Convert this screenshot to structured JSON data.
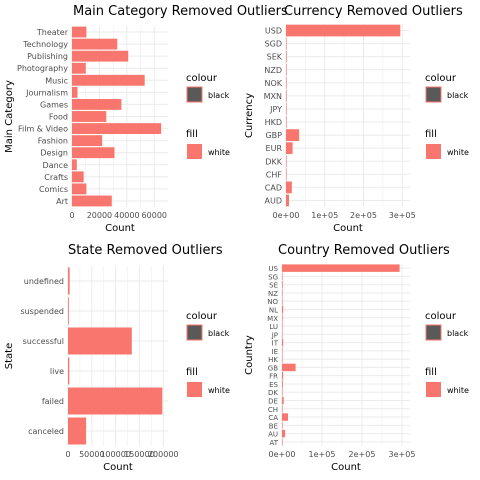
{
  "colors": {
    "bar": "#F8766D",
    "grid": "#EBEBEB",
    "legend_black": "#595959",
    "legend_border": "#F8766D"
  },
  "legend": {
    "colour_title": "colour",
    "colour_label": "black",
    "fill_title": "fill",
    "fill_label": "white"
  },
  "chart_data": [
    {
      "id": "main_category",
      "type": "bar",
      "orientation": "horizontal",
      "title": "Main Category Removed Outliers",
      "xlabel": "Count",
      "ylabel": "Main Category",
      "categories": [
        "Art",
        "Comics",
        "Crafts",
        "Dance",
        "Design",
        "Fashion",
        "Film & Video",
        "Food",
        "Games",
        "Journalism",
        "Music",
        "Photography",
        "Publishing",
        "Technology",
        "Theater"
      ],
      "values": [
        29000,
        10500,
        8500,
        3500,
        31000,
        22000,
        65000,
        25000,
        36000,
        4000,
        53000,
        10000,
        41000,
        33000,
        10500
      ],
      "xlim": [
        0,
        70000
      ],
      "xticks": [
        0,
        20000,
        40000,
        60000
      ],
      "xtick_labels": [
        "0",
        "20000",
        "40000",
        "60000"
      ]
    },
    {
      "id": "currency",
      "type": "bar",
      "orientation": "horizontal",
      "title": "Currency Removed Outliers",
      "xlabel": "Count",
      "ylabel": "Currency",
      "categories": [
        "AUD",
        "CAD",
        "CHF",
        "DKK",
        "EUR",
        "GBP",
        "HKD",
        "JPY",
        "MXN",
        "NOK",
        "NZD",
        "SEK",
        "SGD",
        "USD"
      ],
      "values": [
        7800,
        15000,
        700,
        1100,
        17000,
        34000,
        600,
        40,
        1700,
        700,
        1400,
        1800,
        500,
        295000
      ],
      "xlim": [
        0,
        320000
      ],
      "xticks": [
        0,
        100000,
        200000,
        300000
      ],
      "xtick_labels": [
        "0e+00",
        "1e+05",
        "2e+05",
        "3e+05"
      ]
    },
    {
      "id": "state",
      "type": "bar",
      "orientation": "horizontal",
      "title": "State Removed Outliers",
      "xlabel": "Count",
      "ylabel": "State",
      "categories": [
        "canceled",
        "failed",
        "live",
        "successful",
        "suspended",
        "undefined"
      ],
      "values": [
        38000,
        198000,
        2800,
        134000,
        1800,
        3500
      ],
      "xlim": [
        0,
        210000
      ],
      "xticks": [
        0,
        50000,
        100000,
        150000,
        200000
      ],
      "xtick_labels": [
        "0",
        "50000",
        "100000",
        "150000",
        "200000"
      ]
    },
    {
      "id": "country",
      "type": "bar",
      "orientation": "horizontal",
      "title": "Country Removed Outliers",
      "xlabel": "Count",
      "ylabel": "Country",
      "categories": [
        "AT",
        "AU",
        "BE",
        "CA",
        "CH",
        "DE",
        "DK",
        "ES",
        "FR",
        "GB",
        "HK",
        "IE",
        "IT",
        "JP",
        "LU",
        "MX",
        "NL",
        "NO",
        "NZ",
        "SE",
        "SG",
        "US"
      ],
      "values": [
        600,
        7800,
        600,
        15000,
        800,
        4200,
        1100,
        2200,
        2900,
        34000,
        600,
        800,
        2900,
        40,
        60,
        1700,
        2900,
        700,
        1400,
        1800,
        500,
        294000
      ],
      "xlim": [
        0,
        320000
      ],
      "xticks": [
        0,
        100000,
        200000,
        300000
      ],
      "xtick_labels": [
        "0e+00",
        "1e+05",
        "2e+05",
        "3e+05"
      ]
    }
  ]
}
